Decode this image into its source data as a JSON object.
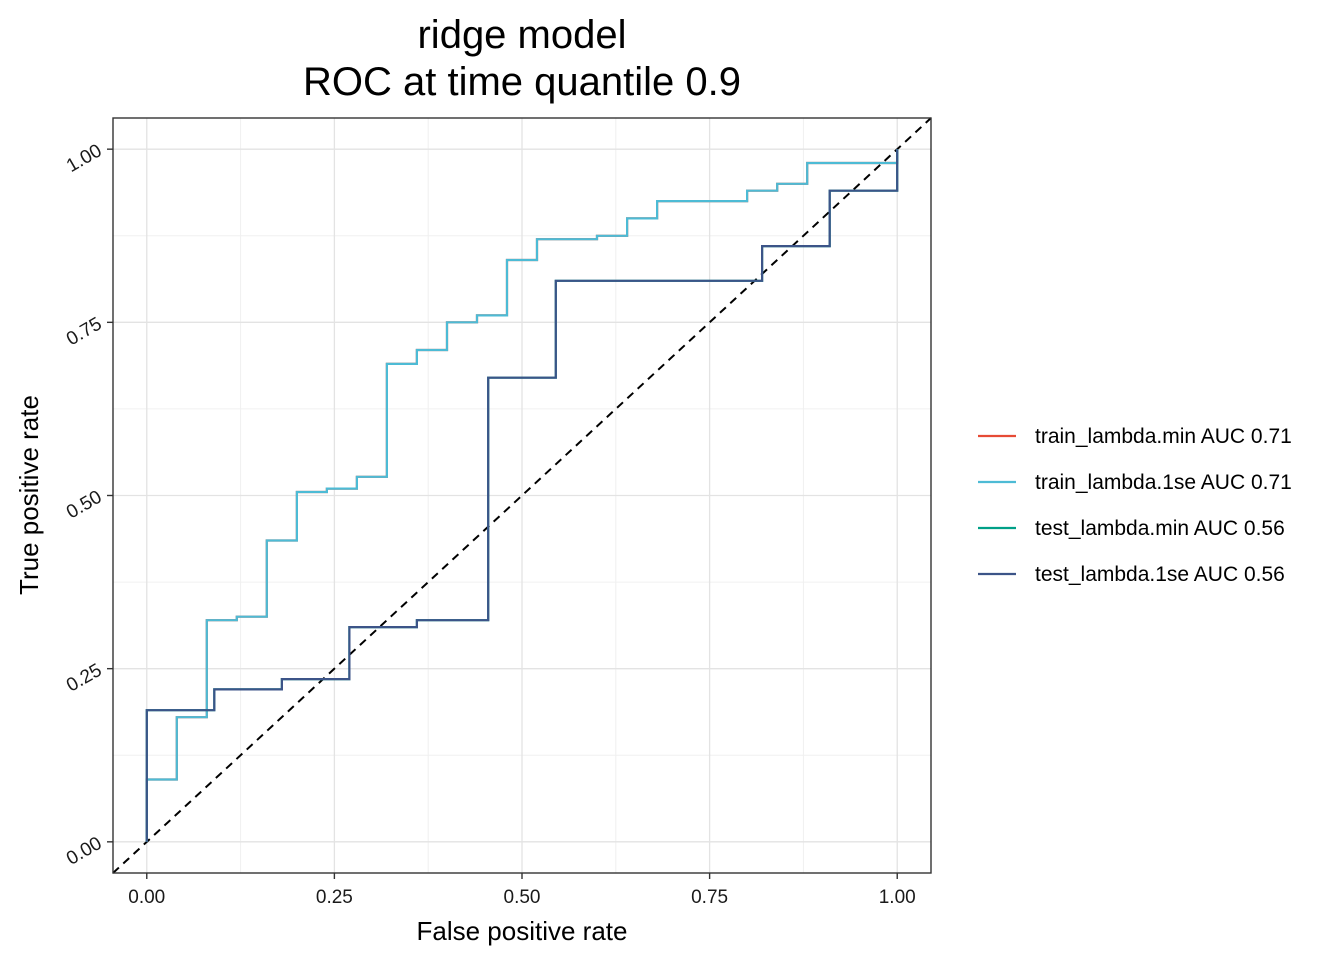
{
  "chart_data": {
    "type": "line",
    "title": "ridge model",
    "subtitle": "ROC at time quantile 0.9",
    "xlabel": "False positive rate",
    "ylabel": "True positive rate",
    "xlim": [
      -0.045,
      1.045
    ],
    "ylim": [
      -0.045,
      1.045
    ],
    "x_ticks": [
      0.0,
      0.25,
      0.5,
      0.75,
      1.0
    ],
    "x_tick_labels": [
      "0.00",
      "0.25",
      "0.50",
      "0.75",
      "1.00"
    ],
    "y_ticks": [
      0.0,
      0.25,
      0.5,
      0.75,
      1.0
    ],
    "y_tick_labels": [
      "0.00",
      "0.25",
      "0.50",
      "0.75",
      "1.00"
    ],
    "grid": true,
    "legend_position": "right",
    "reference_line": {
      "from": [
        -0.045,
        -0.045
      ],
      "to": [
        1.045,
        1.045
      ],
      "style": "dashed",
      "color": "#000000"
    },
    "series": [
      {
        "name": "train_lambda.min AUC 0.71",
        "color": "#E64B35",
        "step": true,
        "x": [
          0.0,
          0.0,
          0.04,
          0.04,
          0.08,
          0.08,
          0.12,
          0.12,
          0.16,
          0.16,
          0.2,
          0.2,
          0.24,
          0.24,
          0.28,
          0.28,
          0.32,
          0.32,
          0.36,
          0.36,
          0.4,
          0.4,
          0.44,
          0.44,
          0.48,
          0.48,
          0.52,
          0.52,
          0.6,
          0.6,
          0.64,
          0.64,
          0.68,
          0.68,
          0.8,
          0.8,
          0.84,
          0.84,
          0.88,
          0.88,
          0.92,
          0.92,
          1.0,
          1.0
        ],
        "y": [
          0.0,
          0.09,
          0.09,
          0.18,
          0.18,
          0.32,
          0.32,
          0.325,
          0.325,
          0.435,
          0.435,
          0.505,
          0.505,
          0.51,
          0.51,
          0.527,
          0.527,
          0.69,
          0.69,
          0.71,
          0.71,
          0.75,
          0.75,
          0.76,
          0.76,
          0.84,
          0.84,
          0.87,
          0.87,
          0.875,
          0.875,
          0.9,
          0.9,
          0.925,
          0.925,
          0.94,
          0.94,
          0.95,
          0.95,
          0.98,
          0.98,
          0.98,
          0.98,
          1.0
        ]
      },
      {
        "name": "train_lambda.1se AUC 0.71",
        "color": "#4DBBD5",
        "step": true,
        "x": [
          0.0,
          0.0,
          0.04,
          0.04,
          0.08,
          0.08,
          0.12,
          0.12,
          0.16,
          0.16,
          0.2,
          0.2,
          0.24,
          0.24,
          0.28,
          0.28,
          0.32,
          0.32,
          0.36,
          0.36,
          0.4,
          0.4,
          0.44,
          0.44,
          0.48,
          0.48,
          0.52,
          0.52,
          0.6,
          0.6,
          0.64,
          0.64,
          0.68,
          0.68,
          0.8,
          0.8,
          0.84,
          0.84,
          0.88,
          0.88,
          0.92,
          0.92,
          1.0,
          1.0
        ],
        "y": [
          0.0,
          0.09,
          0.09,
          0.18,
          0.18,
          0.32,
          0.32,
          0.325,
          0.325,
          0.435,
          0.435,
          0.505,
          0.505,
          0.51,
          0.51,
          0.527,
          0.527,
          0.69,
          0.69,
          0.71,
          0.71,
          0.75,
          0.75,
          0.76,
          0.76,
          0.84,
          0.84,
          0.87,
          0.87,
          0.875,
          0.875,
          0.9,
          0.9,
          0.925,
          0.925,
          0.94,
          0.94,
          0.95,
          0.95,
          0.98,
          0.98,
          0.98,
          0.98,
          1.0
        ]
      },
      {
        "name": "test_lambda.min AUC 0.56",
        "color": "#00A087",
        "step": true,
        "x": [
          0.0,
          0.0,
          0.09,
          0.09,
          0.18,
          0.18,
          0.27,
          0.27,
          0.36,
          0.36,
          0.455,
          0.455,
          0.545,
          0.545,
          0.82,
          0.82,
          0.91,
          0.91,
          1.0,
          1.0
        ],
        "y": [
          0.0,
          0.19,
          0.19,
          0.22,
          0.22,
          0.235,
          0.235,
          0.31,
          0.31,
          0.32,
          0.32,
          0.67,
          0.67,
          0.81,
          0.81,
          0.86,
          0.86,
          0.94,
          0.94,
          1.0
        ]
      },
      {
        "name": "test_lambda.1se AUC 0.56",
        "color": "#3C5488",
        "step": true,
        "x": [
          0.0,
          0.0,
          0.09,
          0.09,
          0.18,
          0.18,
          0.27,
          0.27,
          0.36,
          0.36,
          0.455,
          0.455,
          0.545,
          0.545,
          0.82,
          0.82,
          0.91,
          0.91,
          1.0,
          1.0
        ],
        "y": [
          0.0,
          0.19,
          0.19,
          0.22,
          0.22,
          0.235,
          0.235,
          0.31,
          0.31,
          0.32,
          0.32,
          0.67,
          0.67,
          0.81,
          0.81,
          0.86,
          0.86,
          0.94,
          0.94,
          1.0
        ]
      }
    ]
  }
}
